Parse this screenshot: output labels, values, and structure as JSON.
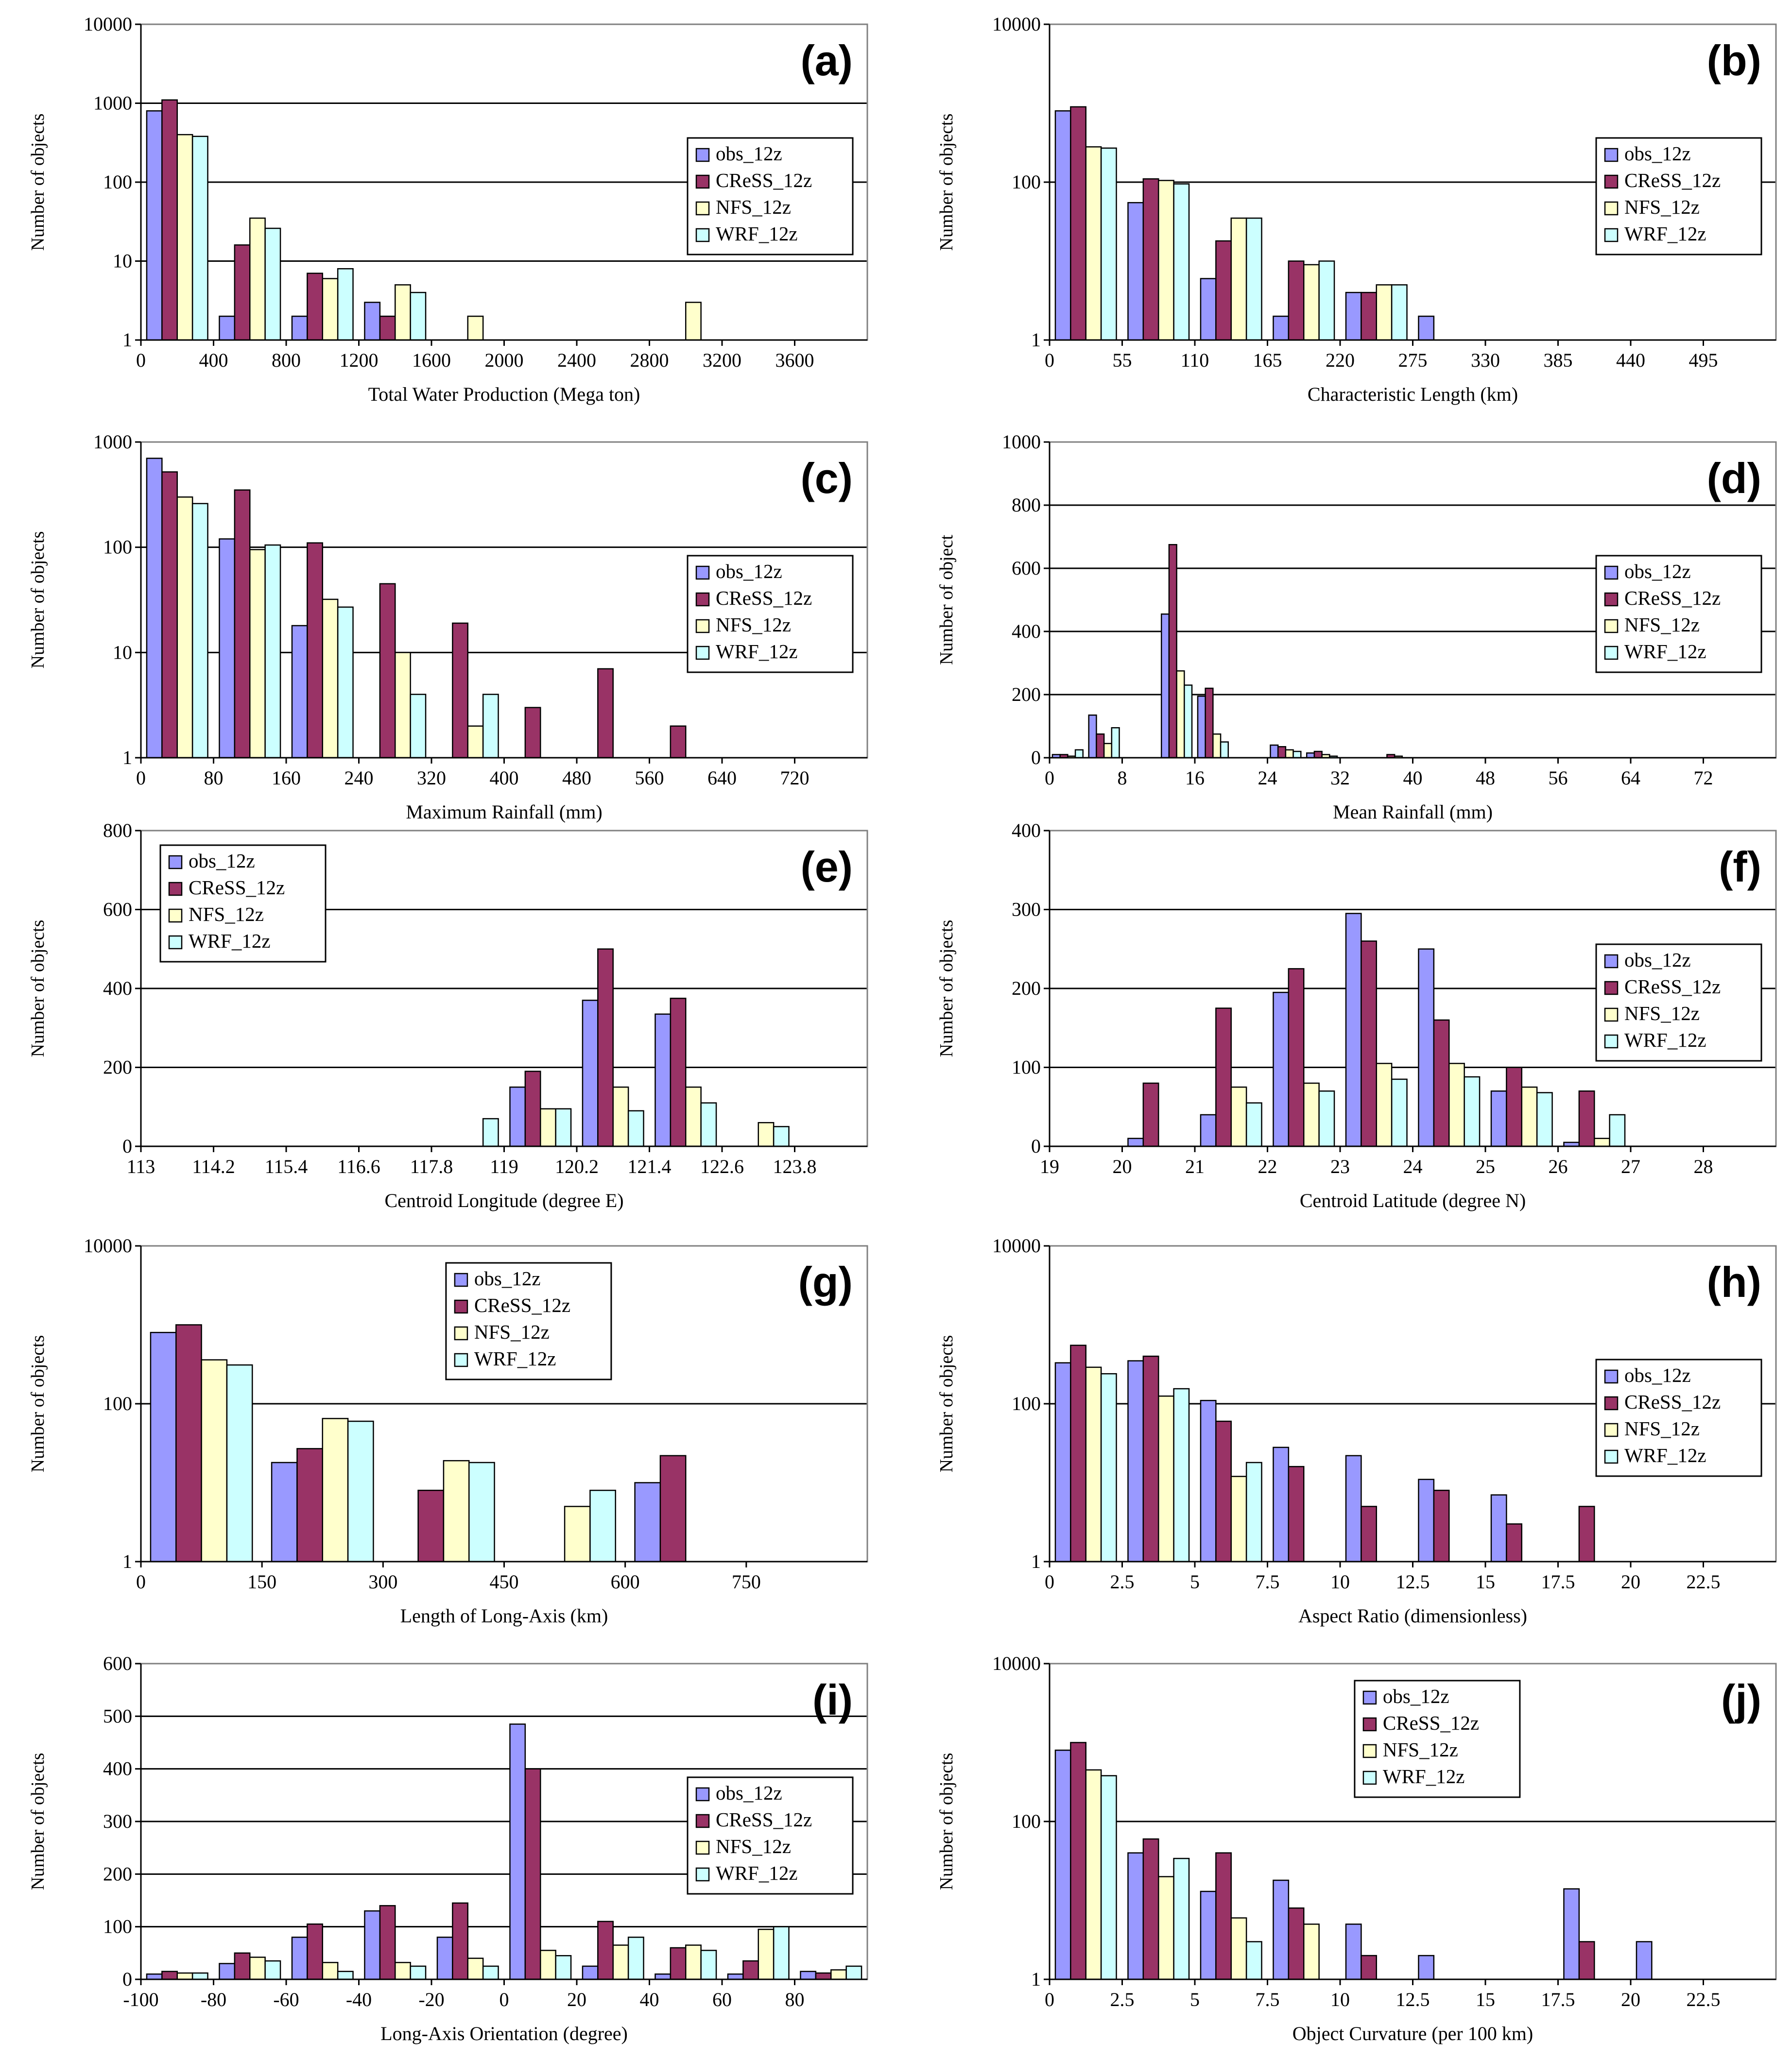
{
  "colors": {
    "obs": "#9999ff",
    "cress": "#993366",
    "nfs": "#ffffcc",
    "wrf": "#ccffff"
  },
  "legend_labels": [
    "obs_12z",
    "CReSS_12z",
    "NFS_12z",
    "WRF_12z"
  ],
  "chart_data": [
    {
      "panel": "(a)",
      "type": "bar",
      "yscale": "log",
      "ylim": [
        1,
        10000
      ],
      "ylabel": "Number of objects",
      "xlabel": "Total Water Production (Mega ton)",
      "yticks": [
        "1",
        "10",
        "100",
        "1000",
        "10000"
      ],
      "gridlines": [
        10,
        100,
        1000
      ],
      "xticks": [
        "0",
        "400",
        "800",
        "1200",
        "1600",
        "2000",
        "2400",
        "2800",
        "3200",
        "3600"
      ],
      "xrange": [
        0,
        4000
      ],
      "bin_width": 400,
      "legend_position": "right",
      "series": {
        "obs": [
          800,
          2,
          2,
          3,
          1,
          1,
          1,
          1,
          1,
          1
        ],
        "cress": [
          1100,
          16,
          7,
          2,
          1,
          1,
          1,
          1,
          1,
          1
        ],
        "nfs": [
          400,
          35,
          6,
          5,
          2,
          1,
          1,
          3,
          1,
          1
        ],
        "wrf": [
          380,
          26,
          8,
          4,
          1,
          1,
          1,
          1,
          1,
          1
        ]
      }
    },
    {
      "panel": "(b)",
      "type": "bar",
      "yscale": "log",
      "ylim": [
        1,
        10000
      ],
      "ylabel": "Number of objects",
      "xlabel": "Characteristic Length (km)",
      "yticks": [
        "1",
        "100",
        "10000"
      ],
      "gridlines": [
        100
      ],
      "xticks": [
        "0",
        "55",
        "110",
        "165",
        "220",
        "275",
        "330",
        "385",
        "440",
        "495"
      ],
      "xrange": [
        0,
        550
      ],
      "bin_width": 55,
      "legend_position": "right",
      "series": {
        "obs": [
          800,
          55,
          6,
          2,
          4,
          2,
          1,
          1,
          1,
          1
        ],
        "cress": [
          900,
          110,
          18,
          10,
          4,
          1,
          1,
          1,
          1,
          1
        ],
        "nfs": [
          280,
          105,
          35,
          9,
          5,
          1,
          1,
          1,
          1,
          1
        ],
        "wrf": [
          270,
          95,
          35,
          10,
          5,
          1,
          1,
          1,
          1,
          1
        ]
      }
    },
    {
      "panel": "(c)",
      "type": "bar",
      "yscale": "log",
      "ylim": [
        1,
        1000
      ],
      "ylabel": "Number of objects",
      "xlabel": "Maximum Rainfall (mm)",
      "yticks": [
        "1",
        "10",
        "100",
        "1000"
      ],
      "gridlines": [
        10,
        100
      ],
      "xticks": [
        "0",
        "80",
        "160",
        "240",
        "320",
        "400",
        "480",
        "560",
        "640",
        "720"
      ],
      "xrange": [
        0,
        800
      ],
      "bin_width": 80,
      "legend_position": "right",
      "series": {
        "obs": [
          700,
          120,
          18,
          1,
          1,
          1,
          1,
          1,
          1,
          1
        ],
        "cress": [
          520,
          350,
          110,
          45,
          19,
          3,
          7,
          2,
          1,
          1
        ],
        "nfs": [
          300,
          95,
          32,
          10,
          2,
          1,
          1,
          1,
          1,
          1
        ],
        "wrf": [
          260,
          105,
          27,
          4,
          4,
          1,
          1,
          1,
          1,
          1
        ]
      }
    },
    {
      "panel": "(d)",
      "type": "bar",
      "yscale": "linear",
      "ylim": [
        0,
        1000
      ],
      "ylabel": "Number of object",
      "xlabel": "Mean Rainfall (mm)",
      "yticks": [
        "0",
        "200",
        "400",
        "600",
        "800",
        "1000"
      ],
      "gridlines": [
        200,
        400,
        600,
        800
      ],
      "xticks": [
        "0",
        "8",
        "16",
        "24",
        "32",
        "40",
        "48",
        "56",
        "64",
        "72"
      ],
      "xrange": [
        0,
        80
      ],
      "bin_width": 4,
      "legend_position": "right",
      "series": {
        "obs": [
          10,
          135,
          0,
          455,
          195,
          0,
          40,
          15,
          0,
          0,
          0,
          0,
          0,
          0,
          0,
          0,
          0,
          0,
          0,
          0
        ],
        "cress": [
          10,
          75,
          0,
          675,
          220,
          0,
          35,
          20,
          0,
          10,
          0,
          0,
          0,
          0,
          0,
          0,
          0,
          0,
          0,
          0
        ],
        "nfs": [
          5,
          45,
          0,
          275,
          75,
          0,
          25,
          10,
          0,
          5,
          0,
          0,
          0,
          0,
          0,
          0,
          0,
          0,
          0,
          0
        ],
        "wrf": [
          25,
          95,
          0,
          230,
          50,
          0,
          20,
          5,
          0,
          0,
          0,
          0,
          0,
          0,
          0,
          0,
          0,
          0,
          0,
          0
        ]
      }
    },
    {
      "panel": "(e)",
      "type": "bar",
      "yscale": "linear",
      "ylim": [
        0,
        800
      ],
      "ylabel": "Number of objects",
      "xlabel": "Centroid Longitude (degree E)",
      "yticks": [
        "0",
        "200",
        "400",
        "600",
        "800"
      ],
      "gridlines": [
        200,
        400,
        600
      ],
      "xticks": [
        "113",
        "114.2",
        "115.4",
        "116.6",
        "117.8",
        "119",
        "120.2",
        "121.4",
        "122.6",
        "123.8"
      ],
      "xrange": [
        113,
        125
      ],
      "bin_width": 1.2,
      "legend_position": "left",
      "series": {
        "obs": [
          0,
          0,
          0,
          0,
          0,
          150,
          370,
          335,
          0,
          0
        ],
        "cress": [
          0,
          0,
          0,
          0,
          0,
          190,
          500,
          375,
          0,
          0
        ],
        "nfs": [
          0,
          0,
          0,
          0,
          0,
          95,
          150,
          150,
          60,
          0
        ],
        "wrf": [
          0,
          0,
          0,
          0,
          70,
          95,
          90,
          110,
          50,
          0
        ]
      }
    },
    {
      "panel": "(f)",
      "type": "bar",
      "yscale": "linear",
      "ylim": [
        0,
        400
      ],
      "ylabel": "Number of objects",
      "xlabel": "Centroid Latitude (degree N)",
      "yticks": [
        "0",
        "100",
        "200",
        "300",
        "400"
      ],
      "gridlines": [
        100,
        200,
        300
      ],
      "xticks": [
        "19",
        "20",
        "21",
        "22",
        "23",
        "24",
        "25",
        "26",
        "27",
        "28"
      ],
      "xrange": [
        19,
        29
      ],
      "bin_width": 1,
      "legend_position": "right",
      "series": {
        "obs": [
          0,
          10,
          40,
          195,
          295,
          250,
          70,
          5,
          0,
          0
        ],
        "cress": [
          0,
          80,
          175,
          225,
          260,
          160,
          100,
          70,
          0,
          0
        ],
        "nfs": [
          0,
          0,
          75,
          80,
          105,
          105,
          75,
          10,
          0,
          0
        ],
        "wrf": [
          0,
          0,
          55,
          70,
          85,
          88,
          68,
          40,
          0,
          0
        ]
      }
    },
    {
      "panel": "(g)",
      "type": "bar",
      "yscale": "log",
      "ylim": [
        1,
        10000
      ],
      "ylabel": "Number of objects",
      "xlabel": "Length of Long-Axis (km)",
      "yticks": [
        "1",
        "100",
        "10000"
      ],
      "gridlines": [
        100
      ],
      "xticks": [
        "0",
        "150",
        "300",
        "450",
        "600",
        "750"
      ],
      "xrange": [
        0,
        900
      ],
      "bin_width": 150,
      "legend_position": "top-center",
      "series": {
        "obs": [
          800,
          18,
          1,
          1,
          10,
          1
        ],
        "cress": [
          1000,
          27,
          8,
          1,
          22,
          1
        ],
        "nfs": [
          360,
          65,
          19,
          5,
          1,
          1
        ],
        "wrf": [
          310,
          60,
          18,
          8,
          1,
          1
        ]
      }
    },
    {
      "panel": "(h)",
      "type": "bar",
      "yscale": "log",
      "ylim": [
        1,
        10000
      ],
      "ylabel": "Number of objects",
      "xlabel": "Aspect Ratio (dimensionless)",
      "yticks": [
        "1",
        "100",
        "10000"
      ],
      "gridlines": [
        100
      ],
      "xticks": [
        "0",
        "2.5",
        "5",
        "7.5",
        "10",
        "12.5",
        "15",
        "17.5",
        "20",
        "22.5"
      ],
      "xrange": [
        0,
        25
      ],
      "bin_width": 2.5,
      "legend_position": "right",
      "series": {
        "obs": [
          330,
          350,
          110,
          28,
          22,
          11,
          7,
          1,
          1,
          1
        ],
        "cress": [
          550,
          400,
          60,
          16,
          5,
          8,
          3,
          5,
          1,
          1
        ],
        "nfs": [
          290,
          125,
          12,
          1,
          1,
          1,
          1,
          1,
          1,
          1
        ],
        "wrf": [
          240,
          155,
          18,
          1,
          1,
          1,
          1,
          1,
          1,
          1
        ]
      }
    },
    {
      "panel": "(i)",
      "type": "bar",
      "yscale": "linear",
      "ylim": [
        0,
        600
      ],
      "ylabel": "Number of objects",
      "xlabel": "Long-Axis Orientation (degree)",
      "yticks": [
        "0",
        "100",
        "200",
        "300",
        "400",
        "500",
        "600"
      ],
      "gridlines": [
        100,
        200,
        300,
        400,
        500
      ],
      "xticks": [
        "-100",
        "-80",
        "-60",
        "-40",
        "-20",
        "0",
        "20",
        "40",
        "60",
        "80"
      ],
      "xrange": [
        -100,
        100
      ],
      "bin_width": 20,
      "legend_position": "right",
      "series": {
        "obs": [
          10,
          30,
          80,
          130,
          80,
          485,
          25,
          10,
          10,
          15
        ],
        "cress": [
          15,
          50,
          105,
          140,
          145,
          400,
          110,
          60,
          35,
          12
        ],
        "nfs": [
          12,
          42,
          32,
          32,
          40,
          55,
          65,
          65,
          95,
          18
        ],
        "wrf": [
          12,
          35,
          15,
          25,
          25,
          45,
          80,
          55,
          100,
          25
        ]
      }
    },
    {
      "panel": "(j)",
      "type": "bar",
      "yscale": "log",
      "ylim": [
        1,
        10000
      ],
      "ylabel": "Number of objects",
      "xlabel": "Object Curvature (per 100 km)",
      "yticks": [
        "1",
        "100",
        "10000"
      ],
      "gridlines": [
        100
      ],
      "xticks": [
        "0",
        "2.5",
        "5",
        "7.5",
        "10",
        "12.5",
        "15",
        "17.5",
        "20",
        "22.5"
      ],
      "xrange": [
        0,
        25
      ],
      "bin_width": 2.5,
      "legend_position": "top-center",
      "series": {
        "obs": [
          800,
          40,
          13,
          18,
          5,
          2,
          1,
          14,
          3,
          1
        ],
        "cress": [
          1000,
          60,
          40,
          8,
          2,
          1,
          1,
          3,
          1,
          1
        ],
        "nfs": [
          450,
          20,
          6,
          5,
          1,
          1,
          1,
          1,
          1,
          1
        ],
        "wrf": [
          380,
          34,
          3,
          1,
          1,
          1,
          1,
          1,
          1,
          1
        ]
      }
    }
  ]
}
